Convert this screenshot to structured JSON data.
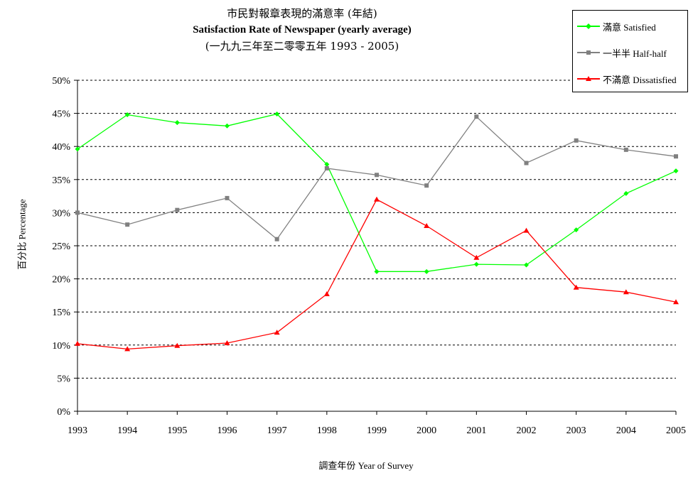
{
  "titles": {
    "zh": "市民對報章表現的滿意率 (年結)",
    "en": "Satisfaction Rate of Newspaper (yearly average)",
    "period": "(一九九三年至二零零五年 1993 - 2005)"
  },
  "chart_data": {
    "type": "line",
    "title": "Satisfaction Rate of Newspaper (yearly average)",
    "xlabel": "調查年份 Year of Survey",
    "ylabel": "百分比 Percentage",
    "x": [
      "1993",
      "1994",
      "1995",
      "1996",
      "1997",
      "1998",
      "1999",
      "2000",
      "2001",
      "2002",
      "2003",
      "2004",
      "2005"
    ],
    "y_ticks": [
      "0%",
      "5%",
      "10%",
      "15%",
      "20%",
      "25%",
      "30%",
      "35%",
      "40%",
      "45%",
      "50%"
    ],
    "ylim": [
      0,
      50
    ],
    "grid": "horizontal dashed",
    "legend_position": "top-right",
    "series": [
      {
        "name": "滿意 Satisfied",
        "color": "#00ff00",
        "marker": "diamond",
        "values": [
          39.6,
          44.8,
          43.6,
          43.1,
          44.9,
          37.3,
          21.1,
          21.1,
          22.2,
          22.1,
          27.4,
          32.9,
          36.3
        ]
      },
      {
        "name": "一半半 Half-half",
        "color": "#808080",
        "marker": "square",
        "values": [
          30.0,
          28.2,
          30.4,
          32.2,
          26.0,
          36.7,
          35.7,
          34.1,
          44.5,
          37.5,
          40.9,
          39.5,
          38.5
        ]
      },
      {
        "name": "不滿意 Dissatisfied",
        "color": "#ff0000",
        "marker": "triangle",
        "values": [
          10.2,
          9.4,
          9.9,
          10.3,
          11.9,
          17.7,
          32.0,
          28.0,
          23.2,
          27.3,
          18.7,
          18.0,
          16.5
        ]
      }
    ]
  }
}
